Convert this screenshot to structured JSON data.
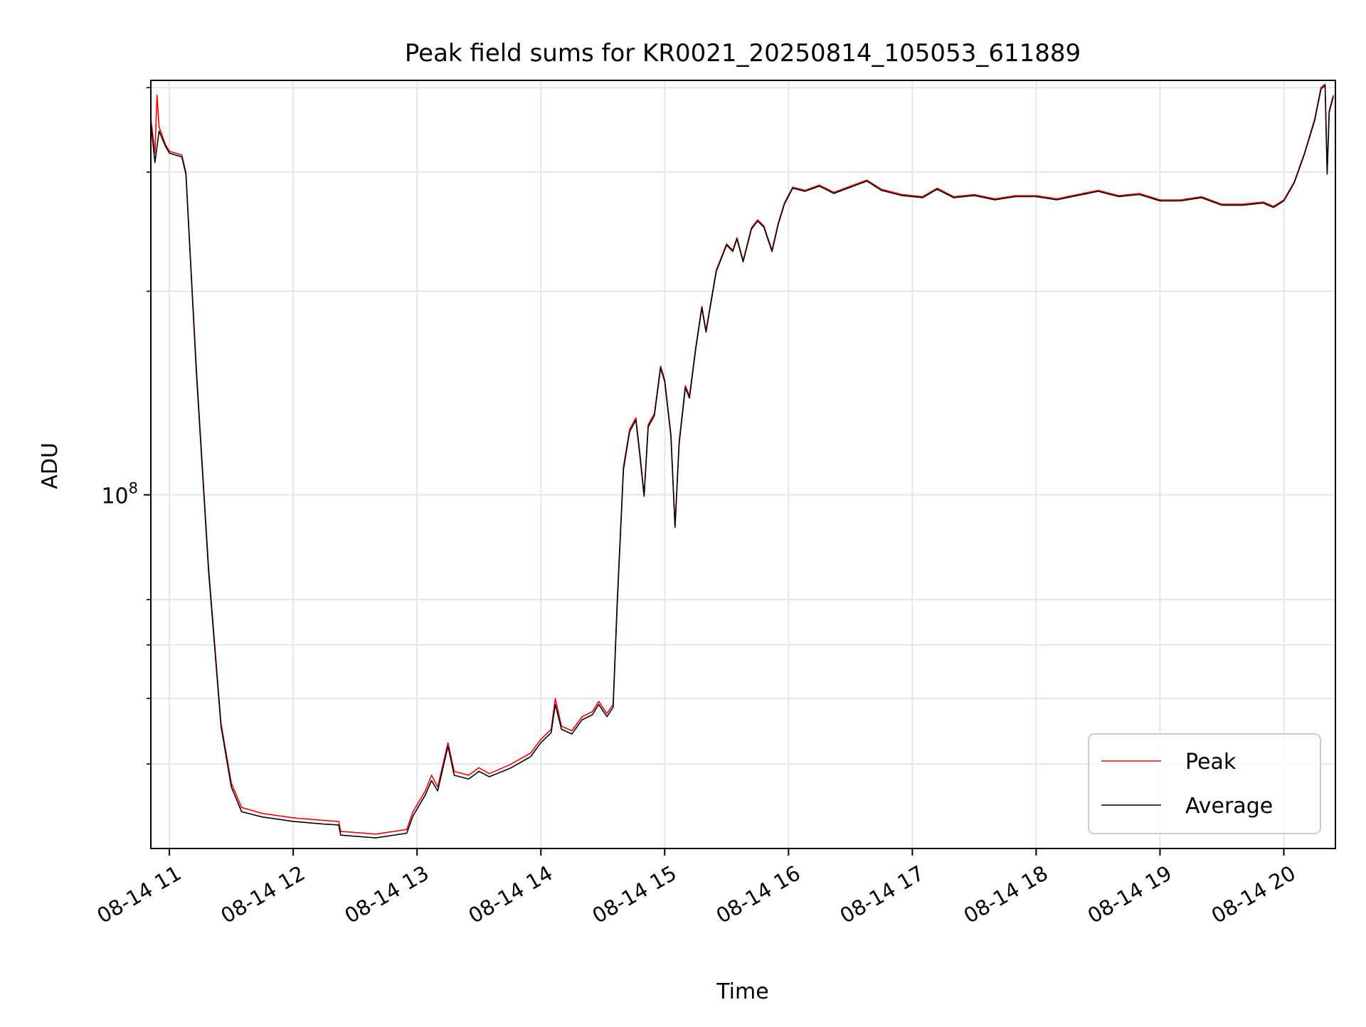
{
  "chart_data": {
    "type": "line",
    "title": "Peak field sums for KR0021_20250814_105053_611889",
    "xlabel": "Time",
    "ylabel": "ADU",
    "y_scale": "log",
    "grid": true,
    "legend_position": "lower right",
    "xlim": [
      "2025-08-14 10:51",
      "2025-08-14 20:25"
    ],
    "ylim": [
      30000000,
      410000000
    ],
    "x_ticks": [
      {
        "time": "2025-08-14 11:00",
        "label": "08-14 11"
      },
      {
        "time": "2025-08-14 12:00",
        "label": "08-14 12"
      },
      {
        "time": "2025-08-14 13:00",
        "label": "08-14 13"
      },
      {
        "time": "2025-08-14 14:00",
        "label": "08-14 14"
      },
      {
        "time": "2025-08-14 15:00",
        "label": "08-14 15"
      },
      {
        "time": "2025-08-14 16:00",
        "label": "08-14 16"
      },
      {
        "time": "2025-08-14 17:00",
        "label": "08-14 17"
      },
      {
        "time": "2025-08-14 18:00",
        "label": "08-14 18"
      },
      {
        "time": "2025-08-14 19:00",
        "label": "08-14 19"
      },
      {
        "time": "2025-08-14 20:00",
        "label": "08-14 20"
      }
    ],
    "y_major_ticks": [
      {
        "value": 100000000,
        "base": "10",
        "exp": "8"
      }
    ],
    "y_minor_ticks": [
      40000000,
      50000000,
      60000000,
      70000000,
      200000000,
      300000000,
      400000000
    ],
    "series": [
      {
        "name": "Peak",
        "color": "#ff0000",
        "points": [
          [
            "2025-08-14 10:51",
            360000000
          ],
          [
            "2025-08-14 10:53",
            320000000
          ],
          [
            "2025-08-14 10:54",
            390000000
          ],
          [
            "2025-08-14 10:55",
            350000000
          ],
          [
            "2025-08-14 10:58",
            330000000
          ],
          [
            "2025-08-14 11:00",
            322000000
          ],
          [
            "2025-08-14 11:06",
            318000000
          ],
          [
            "2025-08-14 11:08",
            300000000
          ],
          [
            "2025-08-14 11:13",
            155000000
          ],
          [
            "2025-08-14 11:19",
            78000000
          ],
          [
            "2025-08-14 11:25",
            46000000
          ],
          [
            "2025-08-14 11:30",
            37500000
          ],
          [
            "2025-08-14 11:35",
            34500000
          ],
          [
            "2025-08-14 11:45",
            33800000
          ],
          [
            "2025-08-14 12:00",
            33300000
          ],
          [
            "2025-08-14 12:15",
            33000000
          ],
          [
            "2025-08-14 12:22",
            32900000
          ],
          [
            "2025-08-14 12:23",
            31800000
          ],
          [
            "2025-08-14 12:40",
            31500000
          ],
          [
            "2025-08-14 12:55",
            32000000
          ],
          [
            "2025-08-14 12:58",
            34000000
          ],
          [
            "2025-08-14 13:04",
            36500000
          ],
          [
            "2025-08-14 13:07",
            38500000
          ],
          [
            "2025-08-14 13:10",
            37000000
          ],
          [
            "2025-08-14 13:15",
            43000000
          ],
          [
            "2025-08-14 13:18",
            39000000
          ],
          [
            "2025-08-14 13:25",
            38500000
          ],
          [
            "2025-08-14 13:30",
            39500000
          ],
          [
            "2025-08-14 13:35",
            38700000
          ],
          [
            "2025-08-14 13:45",
            39900000
          ],
          [
            "2025-08-14 13:55",
            41500000
          ],
          [
            "2025-08-14 14:00",
            43500000
          ],
          [
            "2025-08-14 14:05",
            45000000
          ],
          [
            "2025-08-14 14:07",
            50000000
          ],
          [
            "2025-08-14 14:10",
            45500000
          ],
          [
            "2025-08-14 14:15",
            44800000
          ],
          [
            "2025-08-14 14:20",
            47000000
          ],
          [
            "2025-08-14 14:25",
            47800000
          ],
          [
            "2025-08-14 14:28",
            49500000
          ],
          [
            "2025-08-14 14:32",
            47500000
          ],
          [
            "2025-08-14 14:35",
            49000000
          ],
          [
            "2025-08-14 14:37",
            70000000
          ],
          [
            "2025-08-14 14:40",
            110000000
          ],
          [
            "2025-08-14 14:43",
            125000000
          ],
          [
            "2025-08-14 14:46",
            130000000
          ],
          [
            "2025-08-14 14:48",
            115000000
          ],
          [
            "2025-08-14 14:50",
            100000000
          ],
          [
            "2025-08-14 14:52",
            127000000
          ],
          [
            "2025-08-14 14:55",
            132000000
          ],
          [
            "2025-08-14 14:58",
            155000000
          ],
          [
            "2025-08-14 15:00",
            148000000
          ],
          [
            "2025-08-14 15:03",
            123000000
          ],
          [
            "2025-08-14 15:05",
            90000000
          ],
          [
            "2025-08-14 15:07",
            120000000
          ],
          [
            "2025-08-14 15:10",
            145000000
          ],
          [
            "2025-08-14 15:12",
            140000000
          ],
          [
            "2025-08-14 15:15",
            165000000
          ],
          [
            "2025-08-14 15:18",
            190000000
          ],
          [
            "2025-08-14 15:20",
            175000000
          ],
          [
            "2025-08-14 15:25",
            215000000
          ],
          [
            "2025-08-14 15:30",
            235000000
          ],
          [
            "2025-08-14 15:33",
            230000000
          ],
          [
            "2025-08-14 15:35",
            240000000
          ],
          [
            "2025-08-14 15:38",
            222000000
          ],
          [
            "2025-08-14 15:42",
            248000000
          ],
          [
            "2025-08-14 15:45",
            255000000
          ],
          [
            "2025-08-14 15:48",
            250000000
          ],
          [
            "2025-08-14 15:52",
            230000000
          ],
          [
            "2025-08-14 15:55",
            252000000
          ],
          [
            "2025-08-14 15:58",
            270000000
          ],
          [
            "2025-08-14 16:02",
            285000000
          ],
          [
            "2025-08-14 16:08",
            282000000
          ],
          [
            "2025-08-14 16:15",
            287000000
          ],
          [
            "2025-08-14 16:22",
            280000000
          ],
          [
            "2025-08-14 16:30",
            286000000
          ],
          [
            "2025-08-14 16:38",
            292000000
          ],
          [
            "2025-08-14 16:45",
            283000000
          ],
          [
            "2025-08-14 16:55",
            278000000
          ],
          [
            "2025-08-14 17:05",
            276000000
          ],
          [
            "2025-08-14 17:12",
            284000000
          ],
          [
            "2025-08-14 17:20",
            276000000
          ],
          [
            "2025-08-14 17:30",
            278000000
          ],
          [
            "2025-08-14 17:40",
            274000000
          ],
          [
            "2025-08-14 17:50",
            277000000
          ],
          [
            "2025-08-14 18:00",
            277000000
          ],
          [
            "2025-08-14 18:10",
            274000000
          ],
          [
            "2025-08-14 18:20",
            278000000
          ],
          [
            "2025-08-14 18:30",
            282000000
          ],
          [
            "2025-08-14 18:40",
            277000000
          ],
          [
            "2025-08-14 18:50",
            279000000
          ],
          [
            "2025-08-14 19:00",
            273000000
          ],
          [
            "2025-08-14 19:10",
            273000000
          ],
          [
            "2025-08-14 19:20",
            276000000
          ],
          [
            "2025-08-14 19:30",
            269000000
          ],
          [
            "2025-08-14 19:40",
            269000000
          ],
          [
            "2025-08-14 19:50",
            271000000
          ],
          [
            "2025-08-14 19:55",
            267000000
          ],
          [
            "2025-08-14 20:00",
            273000000
          ],
          [
            "2025-08-14 20:05",
            290000000
          ],
          [
            "2025-08-14 20:10",
            320000000
          ],
          [
            "2025-08-14 20:15",
            360000000
          ],
          [
            "2025-08-14 20:18",
            400000000
          ],
          [
            "2025-08-14 20:20",
            405000000
          ],
          [
            "2025-08-14 20:21",
            300000000
          ],
          [
            "2025-08-14 20:22",
            370000000
          ],
          [
            "2025-08-14 20:24",
            390000000
          ]
        ]
      },
      {
        "name": "Average",
        "color": "#000000",
        "points": [
          [
            "2025-08-14 10:51",
            355000000
          ],
          [
            "2025-08-14 10:53",
            310000000
          ],
          [
            "2025-08-14 10:55",
            345000000
          ],
          [
            "2025-08-14 10:58",
            328000000
          ],
          [
            "2025-08-14 11:00",
            320000000
          ],
          [
            "2025-08-14 11:06",
            316000000
          ],
          [
            "2025-08-14 11:08",
            298000000
          ],
          [
            "2025-08-14 11:13",
            153000000
          ],
          [
            "2025-08-14 11:19",
            77000000
          ],
          [
            "2025-08-14 11:25",
            45500000
          ],
          [
            "2025-08-14 11:30",
            37000000
          ],
          [
            "2025-08-14 11:35",
            34000000
          ],
          [
            "2025-08-14 11:45",
            33400000
          ],
          [
            "2025-08-14 12:00",
            32900000
          ],
          [
            "2025-08-14 12:15",
            32600000
          ],
          [
            "2025-08-14 12:22",
            32500000
          ],
          [
            "2025-08-14 12:23",
            31400000
          ],
          [
            "2025-08-14 12:40",
            31100000
          ],
          [
            "2025-08-14 12:55",
            31600000
          ],
          [
            "2025-08-14 12:58",
            33500000
          ],
          [
            "2025-08-14 13:04",
            36000000
          ],
          [
            "2025-08-14 13:07",
            37800000
          ],
          [
            "2025-08-14 13:10",
            36500000
          ],
          [
            "2025-08-14 13:15",
            42500000
          ],
          [
            "2025-08-14 13:18",
            38500000
          ],
          [
            "2025-08-14 13:25",
            38000000
          ],
          [
            "2025-08-14 13:30",
            39000000
          ],
          [
            "2025-08-14 13:35",
            38300000
          ],
          [
            "2025-08-14 13:45",
            39400000
          ],
          [
            "2025-08-14 13:55",
            41000000
          ],
          [
            "2025-08-14 14:00",
            43000000
          ],
          [
            "2025-08-14 14:05",
            44500000
          ],
          [
            "2025-08-14 14:07",
            49000000
          ],
          [
            "2025-08-14 14:10",
            45000000
          ],
          [
            "2025-08-14 14:15",
            44300000
          ],
          [
            "2025-08-14 14:20",
            46500000
          ],
          [
            "2025-08-14 14:25",
            47300000
          ],
          [
            "2025-08-14 14:28",
            49000000
          ],
          [
            "2025-08-14 14:32",
            47000000
          ],
          [
            "2025-08-14 14:35",
            48500000
          ],
          [
            "2025-08-14 14:37",
            69000000
          ],
          [
            "2025-08-14 14:40",
            109000000
          ],
          [
            "2025-08-14 14:43",
            124000000
          ],
          [
            "2025-08-14 14:46",
            129000000
          ],
          [
            "2025-08-14 14:48",
            114000000
          ],
          [
            "2025-08-14 14:50",
            99500000
          ],
          [
            "2025-08-14 14:52",
            126000000
          ],
          [
            "2025-08-14 14:55",
            131000000
          ],
          [
            "2025-08-14 14:58",
            154000000
          ],
          [
            "2025-08-14 15:00",
            147000000
          ],
          [
            "2025-08-14 15:03",
            122000000
          ],
          [
            "2025-08-14 15:05",
            89500000
          ],
          [
            "2025-08-14 15:07",
            119000000
          ],
          [
            "2025-08-14 15:10",
            144000000
          ],
          [
            "2025-08-14 15:12",
            139000000
          ],
          [
            "2025-08-14 15:15",
            164000000
          ],
          [
            "2025-08-14 15:18",
            189000000
          ],
          [
            "2025-08-14 15:20",
            174000000
          ],
          [
            "2025-08-14 15:25",
            214000000
          ],
          [
            "2025-08-14 15:30",
            234000000
          ],
          [
            "2025-08-14 15:33",
            229000000
          ],
          [
            "2025-08-14 15:35",
            239000000
          ],
          [
            "2025-08-14 15:38",
            221000000
          ],
          [
            "2025-08-14 15:42",
            247000000
          ],
          [
            "2025-08-14 15:45",
            254000000
          ],
          [
            "2025-08-14 15:48",
            249000000
          ],
          [
            "2025-08-14 15:52",
            229000000
          ],
          [
            "2025-08-14 15:55",
            251000000
          ],
          [
            "2025-08-14 15:58",
            269000000
          ],
          [
            "2025-08-14 16:02",
            284000000
          ],
          [
            "2025-08-14 16:08",
            281000000
          ],
          [
            "2025-08-14 16:15",
            286000000
          ],
          [
            "2025-08-14 16:22",
            279000000
          ],
          [
            "2025-08-14 16:30",
            285000000
          ],
          [
            "2025-08-14 16:38",
            291000000
          ],
          [
            "2025-08-14 16:45",
            282000000
          ],
          [
            "2025-08-14 16:55",
            277000000
          ],
          [
            "2025-08-14 17:05",
            275000000
          ],
          [
            "2025-08-14 17:12",
            283000000
          ],
          [
            "2025-08-14 17:20",
            275000000
          ],
          [
            "2025-08-14 17:30",
            277000000
          ],
          [
            "2025-08-14 17:40",
            273000000
          ],
          [
            "2025-08-14 17:50",
            276000000
          ],
          [
            "2025-08-14 18:00",
            276000000
          ],
          [
            "2025-08-14 18:10",
            273000000
          ],
          [
            "2025-08-14 18:20",
            277000000
          ],
          [
            "2025-08-14 18:30",
            281000000
          ],
          [
            "2025-08-14 18:40",
            276000000
          ],
          [
            "2025-08-14 18:50",
            278000000
          ],
          [
            "2025-08-14 19:00",
            272000000
          ],
          [
            "2025-08-14 19:10",
            272000000
          ],
          [
            "2025-08-14 19:20",
            275000000
          ],
          [
            "2025-08-14 19:30",
            268000000
          ],
          [
            "2025-08-14 19:40",
            268000000
          ],
          [
            "2025-08-14 19:50",
            270000000
          ],
          [
            "2025-08-14 19:55",
            266000000
          ],
          [
            "2025-08-14 20:00",
            272000000
          ],
          [
            "2025-08-14 20:05",
            289000000
          ],
          [
            "2025-08-14 20:10",
            319000000
          ],
          [
            "2025-08-14 20:15",
            358000000
          ],
          [
            "2025-08-14 20:18",
            398000000
          ],
          [
            "2025-08-14 20:20",
            403000000
          ],
          [
            "2025-08-14 20:21",
            298000000
          ],
          [
            "2025-08-14 20:22",
            368000000
          ],
          [
            "2025-08-14 20:24",
            388000000
          ]
        ]
      }
    ]
  }
}
